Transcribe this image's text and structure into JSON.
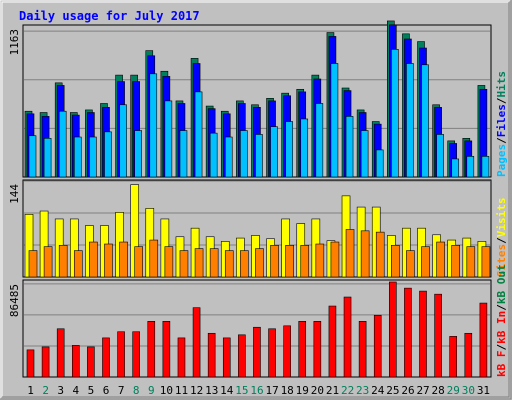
{
  "title": "Daily usage for July 2017",
  "colors": {
    "frame_bg": "#c0c0c0",
    "title": "#0000ff",
    "hits": "#00805c",
    "files": "#0000ff",
    "pages": "#00c0ff",
    "visits": "#ffff00",
    "sites": "#ff8000",
    "kb_in": "#ff0000",
    "kb_out": "#008040",
    "kb_f": "#ff0000",
    "weekend_day": "#00805c",
    "weekday": "#000000",
    "grid": "#808080"
  },
  "chart_data": [
    {
      "type": "bar",
      "panel": "hits-files-pages",
      "categories": [
        "1",
        "2",
        "3",
        "4",
        "5",
        "6",
        "7",
        "8",
        "9",
        "10",
        "11",
        "12",
        "13",
        "14",
        "15",
        "16",
        "17",
        "18",
        "19",
        "20",
        "21",
        "22",
        "23",
        "24",
        "25",
        "26",
        "27",
        "28",
        "29",
        "30",
        "31"
      ],
      "ymax_label": "1163",
      "ylim": [
        0,
        1163
      ],
      "legend": {
        "hits": "Hits",
        "files": "Files",
        "pages": "Pages",
        "sep": "/"
      },
      "series": [
        {
          "name": "Hits",
          "values": [
            510,
            500,
            730,
            500,
            520,
            570,
            790,
            790,
            980,
            820,
            590,
            920,
            550,
            510,
            590,
            560,
            610,
            650,
            680,
            790,
            1120,
            690,
            520,
            430,
            1210,
            1110,
            1050,
            560,
            280,
            300,
            710
          ]
        },
        {
          "name": "Files",
          "values": [
            490,
            470,
            710,
            480,
            500,
            540,
            740,
            740,
            940,
            780,
            570,
            880,
            530,
            490,
            570,
            540,
            590,
            630,
            660,
            760,
            1090,
            670,
            500,
            410,
            1180,
            1070,
            1000,
            540,
            260,
            280,
            680
          ]
        },
        {
          "name": "Pages",
          "values": [
            320,
            300,
            510,
            310,
            310,
            350,
            560,
            360,
            800,
            590,
            360,
            660,
            340,
            310,
            360,
            330,
            390,
            430,
            450,
            570,
            880,
            470,
            360,
            210,
            990,
            880,
            870,
            330,
            140,
            160,
            160
          ]
        }
      ]
    },
    {
      "type": "bar",
      "panel": "visits-sites",
      "categories": [
        "1",
        "2",
        "3",
        "4",
        "5",
        "6",
        "7",
        "8",
        "9",
        "10",
        "11",
        "12",
        "13",
        "14",
        "15",
        "16",
        "17",
        "18",
        "19",
        "20",
        "21",
        "22",
        "23",
        "24",
        "25",
        "26",
        "27",
        "28",
        "29",
        "30",
        "31"
      ],
      "ymax_label": "144",
      "ylim": [
        0,
        144
      ],
      "legend": {
        "visits": "Visits",
        "sites": "Sites",
        "sep": "/"
      },
      "series": [
        {
          "name": "Visits",
          "values": [
            95,
            100,
            88,
            88,
            78,
            78,
            98,
            140,
            104,
            88,
            61,
            74,
            61,
            54,
            59,
            63,
            58,
            88,
            81,
            88,
            55,
            123,
            106,
            106,
            63,
            74,
            74,
            64,
            56,
            59,
            54
          ]
        },
        {
          "name": "Sites",
          "values": [
            40,
            46,
            48,
            40,
            53,
            50,
            53,
            46,
            56,
            46,
            40,
            43,
            43,
            40,
            40,
            43,
            48,
            48,
            48,
            50,
            53,
            72,
            70,
            68,
            48,
            40,
            46,
            53,
            48,
            46,
            46
          ]
        }
      ]
    },
    {
      "type": "bar",
      "panel": "kbytes",
      "categories": [
        "1",
        "2",
        "3",
        "4",
        "5",
        "6",
        "7",
        "8",
        "9",
        "10",
        "11",
        "12",
        "13",
        "14",
        "15",
        "16",
        "17",
        "18",
        "19",
        "20",
        "21",
        "22",
        "23",
        "24",
        "25",
        "26",
        "27",
        "28",
        "29",
        "30",
        "31"
      ],
      "ymax_label": "86485",
      "ylim": [
        0,
        86485
      ],
      "legend": {
        "kbf": "kB F",
        "kbin": "kB In",
        "kbout": "kB Out",
        "sep": "/"
      },
      "series": [
        {
          "name": "kB F",
          "values": [
            24700,
            27400,
            43900,
            28800,
            27400,
            35600,
            41200,
            41200,
            50700,
            50700,
            35600,
            63100,
            39800,
            35600,
            38400,
            45300,
            43900,
            46600,
            50700,
            50700,
            64600,
            72800,
            50700,
            56200,
            86500,
            80900,
            78200,
            75400,
            37000,
            39800,
            67300
          ]
        }
      ]
    }
  ],
  "day_colors": [
    "wd",
    "we",
    "wd",
    "wd",
    "wd",
    "wd",
    "wd",
    "we",
    "we",
    "wd",
    "wd",
    "wd",
    "wd",
    "wd",
    "we",
    "we",
    "wd",
    "wd",
    "wd",
    "wd",
    "wd",
    "we",
    "we",
    "wd",
    "wd",
    "wd",
    "wd",
    "wd",
    "we",
    "we",
    "wd"
  ]
}
